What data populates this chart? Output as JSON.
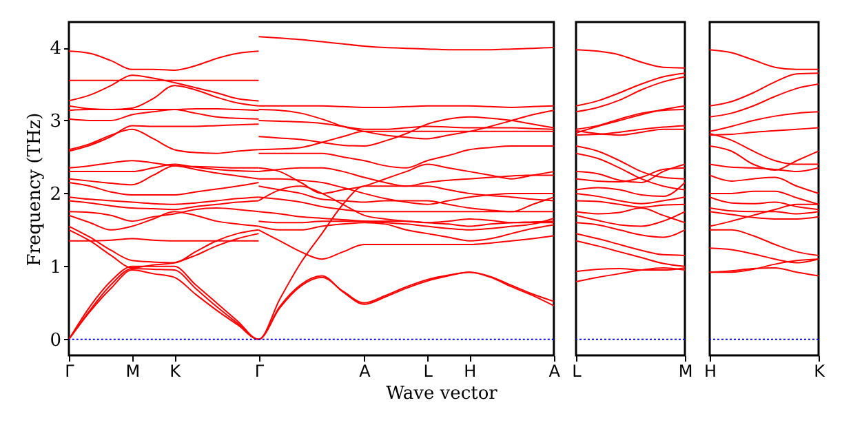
{
  "chart_data": [
    {
      "type": "line",
      "xlabel": "Wave vector",
      "ylabel": "Frequency (THz)",
      "ylim": [
        -0.22,
        4.35
      ],
      "yticks": [
        0,
        1,
        2,
        3,
        4
      ],
      "categories": [
        "Γ",
        null,
        null,
        "M",
        null,
        "K",
        null,
        null,
        null,
        "Γ",
        null,
        null,
        null,
        null,
        "A",
        null,
        null,
        "L",
        null,
        "H",
        null,
        null,
        null,
        "A"
      ],
      "ref_lines": [
        {
          "axis": "y",
          "value": 0,
          "color": "#0000ff",
          "line_style": "dotted"
        }
      ],
      "series": [
        {
          "color": "#ff0000",
          "values": [
            3.95,
            3.92,
            3.82,
            3.7,
            3.7,
            3.69,
            3.75,
            3.85,
            3.92,
            3.95,
            null,
            null,
            null,
            null,
            null,
            null,
            null,
            null,
            null,
            null,
            null,
            null,
            null,
            null
          ]
        },
        {
          "color": "#ff0000",
          "values": [
            3.55,
            3.55,
            3.55,
            3.55,
            3.55,
            3.55,
            3.55,
            3.55,
            3.55,
            3.55,
            null,
            null,
            null,
            null,
            null,
            null,
            null,
            null,
            null,
            null,
            null,
            null,
            null,
            null
          ]
        },
        {
          "color": "#ff0000",
          "values": [
            3.27,
            3.35,
            3.48,
            3.62,
            3.58,
            3.52,
            3.45,
            3.38,
            3.3,
            3.27,
            null,
            null,
            null,
            null,
            null,
            null,
            null,
            null,
            null,
            null,
            null,
            null,
            null,
            null
          ]
        },
        {
          "color": "#ff0000",
          "values": [
            3.2,
            3.16,
            3.15,
            3.17,
            3.3,
            3.48,
            3.42,
            3.32,
            3.24,
            3.2,
            null,
            null,
            null,
            null,
            null,
            null,
            null,
            null,
            null,
            null,
            null,
            null,
            null,
            null
          ]
        },
        {
          "color": "#ff0000",
          "values": [
            3.14,
            3.15,
            3.15,
            3.15,
            3.15,
            3.15,
            3.16,
            3.16,
            3.15,
            3.14,
            null,
            null,
            null,
            null,
            null,
            null,
            null,
            null,
            null,
            null,
            null,
            null,
            null,
            null
          ]
        },
        {
          "color": "#ff0000",
          "values": [
            3.02,
            3.0,
            3.0,
            3.08,
            3.12,
            3.15,
            3.1,
            3.05,
            3.03,
            3.02,
            null,
            null,
            null,
            null,
            null,
            null,
            null,
            null,
            null,
            null,
            null,
            null,
            null,
            null
          ]
        },
        {
          "color": "#ff0000",
          "values": [
            2.6,
            2.68,
            2.8,
            2.88,
            2.75,
            2.6,
            2.56,
            2.55,
            2.58,
            2.6,
            null,
            null,
            null,
            null,
            null,
            null,
            null,
            null,
            null,
            null,
            null,
            null,
            null,
            null
          ]
        },
        {
          "color": "#ff0000",
          "values": [
            2.58,
            2.66,
            2.78,
            2.93,
            2.92,
            2.92,
            2.92,
            2.93,
            2.94,
            2.95,
            null,
            null,
            null,
            null,
            null,
            null,
            null,
            null,
            null,
            null,
            null,
            null,
            null,
            null
          ]
        },
        {
          "color": "#ff0000",
          "values": [
            2.35,
            2.38,
            2.42,
            2.45,
            2.42,
            2.38,
            2.37,
            2.36,
            2.35,
            2.35,
            null,
            null,
            null,
            null,
            null,
            null,
            null,
            null,
            null,
            null,
            null,
            null,
            null,
            null
          ]
        },
        {
          "color": "#ff0000",
          "values": [
            2.3,
            2.3,
            2.3,
            2.3,
            2.35,
            2.4,
            2.36,
            2.33,
            2.31,
            2.3,
            null,
            null,
            null,
            null,
            null,
            null,
            null,
            null,
            null,
            null,
            null,
            null,
            null,
            null
          ]
        },
        {
          "color": "#ff0000",
          "values": [
            2.2,
            2.17,
            2.14,
            2.12,
            2.25,
            2.38,
            2.33,
            2.28,
            2.24,
            2.2,
            null,
            null,
            null,
            null,
            null,
            null,
            null,
            null,
            null,
            null,
            null,
            null,
            null,
            null
          ]
        },
        {
          "color": "#ff0000",
          "values": [
            2.15,
            2.1,
            2.02,
            1.98,
            1.98,
            1.98,
            2.02,
            2.06,
            2.1,
            2.15,
            null,
            null,
            null,
            null,
            null,
            null,
            null,
            null,
            null,
            null,
            null,
            null,
            null,
            null
          ]
        },
        {
          "color": "#ff0000",
          "values": [
            1.95,
            1.92,
            1.9,
            1.88,
            1.86,
            1.85,
            1.87,
            1.9,
            1.93,
            1.95,
            null,
            null,
            null,
            null,
            null,
            null,
            null,
            null,
            null,
            null,
            null,
            null,
            null,
            null
          ]
        },
        {
          "color": "#ff0000",
          "values": [
            1.9,
            1.87,
            1.83,
            1.8,
            1.79,
            1.78,
            1.82,
            1.85,
            1.88,
            1.9,
            null,
            null,
            null,
            null,
            null,
            null,
            null,
            null,
            null,
            null,
            null,
            null,
            null,
            null
          ]
        },
        {
          "color": "#ff0000",
          "values": [
            1.75,
            1.74,
            1.7,
            1.62,
            1.68,
            1.72,
            1.78,
            1.8,
            1.78,
            1.75,
            null,
            null,
            null,
            null,
            null,
            null,
            null,
            null,
            null,
            null,
            null,
            null,
            null,
            null
          ]
        },
        {
          "color": "#ff0000",
          "values": [
            1.7,
            1.6,
            1.5,
            1.55,
            1.65,
            1.75,
            1.7,
            1.62,
            1.58,
            1.55,
            null,
            null,
            null,
            null,
            null,
            null,
            null,
            null,
            null,
            null,
            null,
            null,
            null,
            null
          ]
        },
        {
          "color": "#ff0000",
          "values": [
            1.55,
            1.4,
            1.22,
            1.08,
            1.06,
            1.05,
            1.2,
            1.35,
            1.45,
            1.5,
            null,
            null,
            null,
            null,
            null,
            null,
            null,
            null,
            null,
            null,
            null,
            null,
            null,
            null
          ]
        },
        {
          "color": "#ff0000",
          "values": [
            1.5,
            1.35,
            1.15,
            0.98,
            1.02,
            1.05,
            1.15,
            1.28,
            1.38,
            1.45,
            null,
            null,
            null,
            null,
            null,
            null,
            null,
            null,
            null,
            null,
            null,
            null,
            null,
            null
          ]
        },
        {
          "color": "#ff0000",
          "values": [
            1.35,
            1.35,
            1.36,
            1.38,
            1.36,
            1.35,
            1.35,
            1.35,
            1.35,
            1.35,
            null,
            null,
            null,
            null,
            null,
            null,
            null,
            null,
            null,
            null,
            null,
            null,
            null,
            null
          ]
        },
        {
          "color": "#ff0000",
          "values": [
            0,
            0.45,
            0.8,
            1.0,
            1.0,
            1.0,
            0.75,
            0.5,
            0.25,
            0,
            0.55,
            1.05,
            1.45,
            1.85,
            2.1,
            2.1,
            2.1,
            2.1,
            2.05,
            2.0,
            1.97,
            1.95,
            1.92,
            1.9
          ]
        },
        {
          "color": "#ff0000",
          "values": [
            0,
            0.4,
            0.75,
            0.97,
            0.96,
            0.95,
            0.7,
            0.45,
            0.22,
            0,
            0.45,
            0.75,
            0.87,
            0.65,
            0.48,
            0.58,
            0.7,
            0.8,
            0.87,
            0.92,
            0.85,
            0.72,
            0.6,
            0.46
          ]
        },
        {
          "color": "#ff0000",
          "values": [
            0,
            0.38,
            0.7,
            0.95,
            0.9,
            0.85,
            0.62,
            0.4,
            0.2,
            0,
            0.43,
            0.73,
            0.85,
            0.66,
            0.5,
            0.6,
            0.72,
            0.82,
            0.88,
            0.92,
            0.86,
            0.74,
            0.62,
            0.52
          ]
        },
        {
          "color": "#ff0000",
          "values": [
            null,
            null,
            null,
            null,
            null,
            null,
            null,
            null,
            null,
            4.15,
            4.13,
            4.11,
            4.08,
            4.05,
            4.02,
            4.0,
            3.99,
            3.98,
            3.97,
            3.97,
            3.97,
            3.98,
            3.99,
            4.0
          ]
        },
        {
          "color": "#ff0000",
          "values": [
            null,
            null,
            null,
            null,
            null,
            null,
            null,
            null,
            null,
            3.2,
            3.2,
            3.2,
            3.2,
            3.19,
            3.18,
            3.18,
            3.19,
            3.2,
            3.2,
            3.2,
            3.19,
            3.18,
            3.19,
            3.2
          ]
        },
        {
          "color": "#ff0000",
          "values": [
            null,
            null,
            null,
            null,
            null,
            null,
            null,
            null,
            null,
            3.15,
            3.14,
            3.1,
            3.02,
            2.92,
            2.85,
            2.8,
            2.77,
            2.75,
            2.8,
            2.85,
            2.92,
            3.0,
            3.08,
            3.14
          ]
        },
        {
          "color": "#ff0000",
          "values": [
            null,
            null,
            null,
            null,
            null,
            null,
            null,
            null,
            null,
            3.0,
            2.99,
            2.98,
            2.96,
            2.92,
            2.88,
            2.88,
            2.9,
            2.92,
            2.91,
            2.9,
            2.9,
            2.9,
            2.89,
            2.88
          ]
        },
        {
          "color": "#ff0000",
          "values": [
            null,
            null,
            null,
            null,
            null,
            null,
            null,
            null,
            null,
            2.78,
            2.76,
            2.74,
            2.7,
            2.66,
            2.65,
            2.72,
            2.82,
            2.95,
            3.02,
            3.05,
            3.03,
            3.0,
            2.95,
            2.9
          ]
        },
        {
          "color": "#ff0000",
          "values": [
            null,
            null,
            null,
            null,
            null,
            null,
            null,
            null,
            null,
            2.6,
            2.61,
            2.63,
            2.7,
            2.78,
            2.85,
            2.85,
            2.85,
            2.85,
            2.85,
            2.85,
            2.85,
            2.85,
            2.85,
            2.85
          ]
        },
        {
          "color": "#ff0000",
          "values": [
            null,
            null,
            null,
            null,
            null,
            null,
            null,
            null,
            null,
            2.55,
            2.55,
            2.55,
            2.55,
            2.5,
            2.45,
            2.38,
            2.35,
            2.45,
            2.52,
            2.6,
            2.63,
            2.65,
            2.65,
            2.65
          ]
        },
        {
          "color": "#ff0000",
          "values": [
            null,
            null,
            null,
            null,
            null,
            null,
            null,
            null,
            null,
            2.35,
            2.3,
            2.15,
            2.0,
            2.05,
            2.1,
            2.2,
            2.3,
            2.4,
            2.35,
            2.3,
            2.25,
            2.2,
            2.25,
            2.3
          ]
        },
        {
          "color": "#ff0000",
          "values": [
            null,
            null,
            null,
            null,
            null,
            null,
            null,
            null,
            null,
            2.3,
            2.33,
            2.35,
            2.35,
            2.3,
            2.22,
            2.15,
            2.1,
            2.15,
            2.18,
            2.2,
            2.22,
            2.24,
            2.25,
            2.25
          ]
        },
        {
          "color": "#ff0000",
          "values": [
            null,
            null,
            null,
            null,
            null,
            null,
            null,
            null,
            null,
            2.2,
            2.2,
            2.18,
            2.15,
            2.08,
            2.0,
            1.93,
            1.88,
            1.85,
            1.9,
            1.95,
            1.98,
            2.0,
            2.0,
            2.0
          ]
        },
        {
          "color": "#ff0000",
          "values": [
            null,
            null,
            null,
            null,
            null,
            null,
            null,
            null,
            null,
            2.1,
            2.05,
            2.0,
            1.92,
            1.9,
            1.88,
            1.9,
            1.9,
            1.9,
            1.85,
            1.8,
            1.77,
            1.75,
            1.85,
            1.95
          ]
        },
        {
          "color": "#ff0000",
          "values": [
            null,
            null,
            null,
            null,
            null,
            null,
            null,
            null,
            null,
            1.95,
            1.92,
            1.88,
            1.82,
            1.78,
            1.75,
            1.75,
            1.75,
            1.75,
            1.75,
            1.75,
            1.75,
            1.75,
            1.75,
            1.75
          ]
        },
        {
          "color": "#ff0000",
          "values": [
            null,
            null,
            null,
            null,
            null,
            null,
            null,
            null,
            null,
            1.9,
            2.05,
            2.1,
            2.0,
            1.85,
            1.7,
            1.65,
            1.62,
            1.6,
            1.62,
            1.65,
            1.63,
            1.6,
            1.6,
            1.6
          ]
        },
        {
          "color": "#ff0000",
          "values": [
            null,
            null,
            null,
            null,
            null,
            null,
            null,
            null,
            null,
            1.75,
            1.72,
            1.68,
            1.66,
            1.64,
            1.62,
            1.6,
            1.58,
            1.55,
            1.52,
            1.5,
            1.52,
            1.55,
            1.58,
            1.66
          ]
        },
        {
          "color": "#ff0000",
          "values": [
            null,
            null,
            null,
            null,
            null,
            null,
            null,
            null,
            null,
            1.62,
            1.6,
            1.6,
            1.62,
            1.62,
            1.62,
            1.62,
            1.62,
            1.6,
            1.58,
            1.55,
            1.58,
            1.6,
            1.61,
            1.62
          ]
        },
        {
          "color": "#ff0000",
          "values": [
            null,
            null,
            null,
            null,
            null,
            null,
            null,
            null,
            null,
            1.55,
            1.5,
            1.5,
            1.55,
            1.58,
            1.6,
            1.58,
            1.5,
            1.45,
            1.4,
            1.35,
            1.38,
            1.45,
            1.52,
            1.57
          ]
        },
        {
          "color": "#ff0000",
          "values": [
            null,
            null,
            null,
            null,
            null,
            null,
            null,
            null,
            null,
            1.5,
            1.35,
            1.2,
            1.1,
            1.2,
            1.3,
            1.3,
            1.3,
            1.3,
            1.3,
            1.3,
            1.32,
            1.35,
            1.38,
            1.42
          ]
        }
      ]
    },
    {
      "type": "line",
      "tick_labels": "x",
      "ylim": [
        -0.22,
        4.35
      ],
      "categories": [
        "L",
        null,
        null,
        null,
        null,
        "M"
      ],
      "ref_lines": [
        {
          "axis": "y",
          "value": 0,
          "color": "#0000ff",
          "line_style": "dotted"
        }
      ],
      "series": [
        {
          "color": "#ff0000",
          "values": [
            3.97,
            3.95,
            3.9,
            3.8,
            3.73,
            3.72
          ]
        },
        {
          "color": "#ff0000",
          "values": [
            3.2,
            3.27,
            3.38,
            3.5,
            3.6,
            3.65
          ]
        },
        {
          "color": "#ff0000",
          "values": [
            3.12,
            3.18,
            3.28,
            3.42,
            3.53,
            3.6
          ]
        },
        {
          "color": "#ff0000",
          "values": [
            2.88,
            2.93,
            3.02,
            3.1,
            3.14,
            3.15
          ]
        },
        {
          "color": "#ff0000",
          "values": [
            2.83,
            2.92,
            3.0,
            3.08,
            3.15,
            3.2
          ]
        },
        {
          "color": "#ff0000",
          "values": [
            2.8,
            2.81,
            2.84,
            2.88,
            2.91,
            2.93
          ]
        },
        {
          "color": "#ff0000",
          "values": [
            2.86,
            2.82,
            2.8,
            2.84,
            2.88,
            2.88
          ]
        },
        {
          "color": "#ff0000",
          "values": [
            2.65,
            2.58,
            2.45,
            2.3,
            2.22,
            2.2
          ]
        },
        {
          "color": "#ff0000",
          "values": [
            2.55,
            2.48,
            2.35,
            2.2,
            2.1,
            2.05
          ]
        },
        {
          "color": "#ff0000",
          "values": [
            2.3,
            2.27,
            2.18,
            2.15,
            2.3,
            2.4
          ]
        },
        {
          "color": "#ff0000",
          "values": [
            2.2,
            2.17,
            2.16,
            2.22,
            2.33,
            2.35
          ]
        },
        {
          "color": "#ff0000",
          "values": [
            2.05,
            2.08,
            2.05,
            1.98,
            1.96,
            2.15
          ]
        },
        {
          "color": "#ff0000",
          "values": [
            2.0,
            1.96,
            1.9,
            1.86,
            1.9,
            1.95
          ]
        },
        {
          "color": "#ff0000",
          "values": [
            1.9,
            1.89,
            1.85,
            1.81,
            1.84,
            1.85
          ]
        },
        {
          "color": "#ff0000",
          "values": [
            1.75,
            1.72,
            1.74,
            1.8,
            1.7,
            1.6
          ]
        },
        {
          "color": "#ff0000",
          "values": [
            1.7,
            1.63,
            1.57,
            1.55,
            1.62,
            1.75
          ]
        },
        {
          "color": "#ff0000",
          "values": [
            1.6,
            1.57,
            1.5,
            1.43,
            1.4,
            1.5
          ]
        },
        {
          "color": "#ff0000",
          "values": [
            1.45,
            1.38,
            1.3,
            1.22,
            1.16,
            1.15
          ]
        },
        {
          "color": "#ff0000",
          "values": [
            1.35,
            1.28,
            1.2,
            1.12,
            1.04,
            1.0
          ]
        },
        {
          "color": "#ff0000",
          "values": [
            0.93,
            0.96,
            0.97,
            0.95,
            0.95,
            0.98
          ]
        },
        {
          "color": "#ff0000",
          "values": [
            0.79,
            0.85,
            0.9,
            0.95,
            0.98,
            0.95
          ]
        }
      ]
    },
    {
      "type": "line",
      "tick_labels": "x",
      "ylim": [
        -0.22,
        4.35
      ],
      "categories": [
        "H",
        null,
        null,
        null,
        null,
        "K"
      ],
      "ref_lines": [
        {
          "axis": "y",
          "value": 0,
          "color": "#0000ff",
          "line_style": "dotted"
        }
      ],
      "series": [
        {
          "color": "#ff0000",
          "values": [
            3.97,
            3.93,
            3.83,
            3.73,
            3.7,
            3.7
          ]
        },
        {
          "color": "#ff0000",
          "values": [
            3.2,
            3.26,
            3.38,
            3.53,
            3.64,
            3.65
          ]
        },
        {
          "color": "#ff0000",
          "values": [
            3.05,
            3.1,
            3.2,
            3.33,
            3.44,
            3.5
          ]
        },
        {
          "color": "#ff0000",
          "values": [
            2.85,
            2.92,
            3.0,
            3.06,
            3.1,
            3.12
          ]
        },
        {
          "color": "#ff0000",
          "values": [
            2.8,
            2.81,
            2.84,
            2.86,
            2.88,
            2.9
          ]
        },
        {
          "color": "#ff0000",
          "values": [
            2.82,
            2.73,
            2.58,
            2.45,
            2.4,
            2.4
          ]
        },
        {
          "color": "#ff0000",
          "values": [
            2.65,
            2.58,
            2.4,
            2.32,
            2.45,
            2.58
          ]
        },
        {
          "color": "#ff0000",
          "values": [
            2.4,
            2.36,
            2.35,
            2.33,
            2.3,
            2.35
          ]
        },
        {
          "color": "#ff0000",
          "values": [
            2.25,
            2.17,
            2.2,
            2.22,
            2.1,
            2.0
          ]
        },
        {
          "color": "#ff0000",
          "values": [
            2.0,
            2.0,
            2.03,
            2.03,
            1.94,
            1.85
          ]
        },
        {
          "color": "#ff0000",
          "values": [
            1.95,
            1.87,
            1.86,
            1.88,
            1.82,
            1.78
          ]
        },
        {
          "color": "#ff0000",
          "values": [
            1.8,
            1.76,
            1.75,
            1.75,
            1.72,
            1.75
          ]
        },
        {
          "color": "#ff0000",
          "values": [
            1.75,
            1.71,
            1.67,
            1.65,
            1.65,
            1.68
          ]
        },
        {
          "color": "#ff0000",
          "values": [
            1.55,
            1.62,
            1.7,
            1.78,
            1.85,
            1.85
          ]
        },
        {
          "color": "#ff0000",
          "values": [
            1.5,
            1.5,
            1.42,
            1.3,
            1.2,
            1.15
          ]
        },
        {
          "color": "#ff0000",
          "values": [
            1.25,
            1.23,
            1.17,
            1.1,
            1.05,
            1.1
          ]
        },
        {
          "color": "#ff0000",
          "values": [
            0.92,
            0.92,
            0.96,
            1.03,
            1.08,
            1.1
          ]
        },
        {
          "color": "#ff0000",
          "values": [
            0.92,
            0.94,
            0.97,
            0.98,
            0.92,
            0.87
          ]
        }
      ]
    }
  ]
}
